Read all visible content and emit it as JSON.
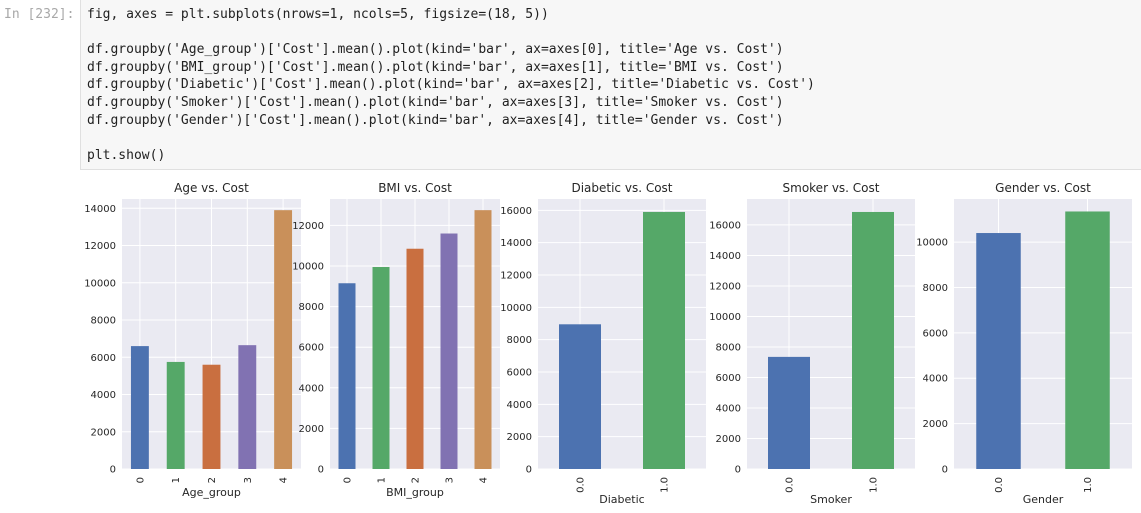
{
  "cell": {
    "prompt": "In [232]:",
    "code_lines": [
      "fig, axes = plt.subplots(nrows=1, ncols=5, figsize=(18, 5))",
      "",
      "df.groupby('Age_group')['Cost'].mean().plot(kind='bar', ax=axes[0], title='Age vs. Cost')",
      "df.groupby('BMI_group')['Cost'].mean().plot(kind='bar', ax=axes[1], title='BMI vs. Cost')",
      "df.groupby('Diabetic')['Cost'].mean().plot(kind='bar', ax=axes[2], title='Diabetic vs. Cost')",
      "df.groupby('Smoker')['Cost'].mean().plot(kind='bar', ax=axes[3], title='Smoker vs. Cost')",
      "df.groupby('Gender')['Cost'].mean().plot(kind='bar', ax=axes[4], title='Gender vs. Cost')",
      "",
      "plt.show()"
    ]
  },
  "colors": {
    "axes_bg": "#eaeaf2",
    "grid": "#ffffff",
    "bars": [
      "#4c72b0",
      "#55a868",
      "#c44e52",
      "#8172b2",
      "#ccb974"
    ]
  },
  "chart_data": [
    {
      "type": "bar",
      "title": "Age vs. Cost",
      "xlabel": "Age_group",
      "categories": [
        "0",
        "1",
        "2",
        "3",
        "4"
      ],
      "values": [
        6600,
        5750,
        5600,
        6650,
        13900
      ],
      "colors": [
        "#4c72b0",
        "#55a868",
        "#c96f40",
        "#8172b2",
        "#c9905a"
      ],
      "ylim": [
        0,
        14500
      ],
      "yticks": [
        0,
        2000,
        4000,
        6000,
        8000,
        10000,
        12000,
        14000
      ],
      "grid": true
    },
    {
      "type": "bar",
      "title": "BMI vs. Cost",
      "xlabel": "BMI_group",
      "categories": [
        "0",
        "1",
        "2",
        "3",
        "4"
      ],
      "values": [
        9150,
        9950,
        10850,
        11600,
        12750
      ],
      "colors": [
        "#4c72b0",
        "#55a868",
        "#c96f40",
        "#8172b2",
        "#c9905a"
      ],
      "ylim": [
        0,
        13300
      ],
      "yticks": [
        0,
        2000,
        4000,
        6000,
        8000,
        10000,
        12000
      ],
      "grid": true
    },
    {
      "type": "bar",
      "title": "Diabetic vs. Cost",
      "xlabel": "Diabetic",
      "categories": [
        "0.0",
        "1.0"
      ],
      "values": [
        8950,
        15900
      ],
      "colors": [
        "#4c72b0",
        "#55a868"
      ],
      "ylim": [
        0,
        16700
      ],
      "yticks": [
        0,
        2000,
        4000,
        6000,
        8000,
        10000,
        12000,
        14000,
        16000
      ],
      "grid": true
    },
    {
      "type": "bar",
      "title": "Smoker vs. Cost",
      "xlabel": "Smoker",
      "categories": [
        "0.0",
        "1.0"
      ],
      "values": [
        7350,
        16850
      ],
      "colors": [
        "#4c72b0",
        "#55a868"
      ],
      "ylim": [
        0,
        17700
      ],
      "yticks": [
        0,
        2000,
        4000,
        6000,
        8000,
        10000,
        12000,
        14000,
        16000
      ],
      "grid": true
    },
    {
      "type": "bar",
      "title": "Gender vs. Cost",
      "xlabel": "Gender",
      "categories": [
        "0.0",
        "1.0"
      ],
      "values": [
        10400,
        11350
      ],
      "colors": [
        "#4c72b0",
        "#55a868"
      ],
      "ylim": [
        0,
        11900
      ],
      "yticks": [
        0,
        2000,
        4000,
        6000,
        8000,
        10000
      ],
      "grid": true
    }
  ]
}
